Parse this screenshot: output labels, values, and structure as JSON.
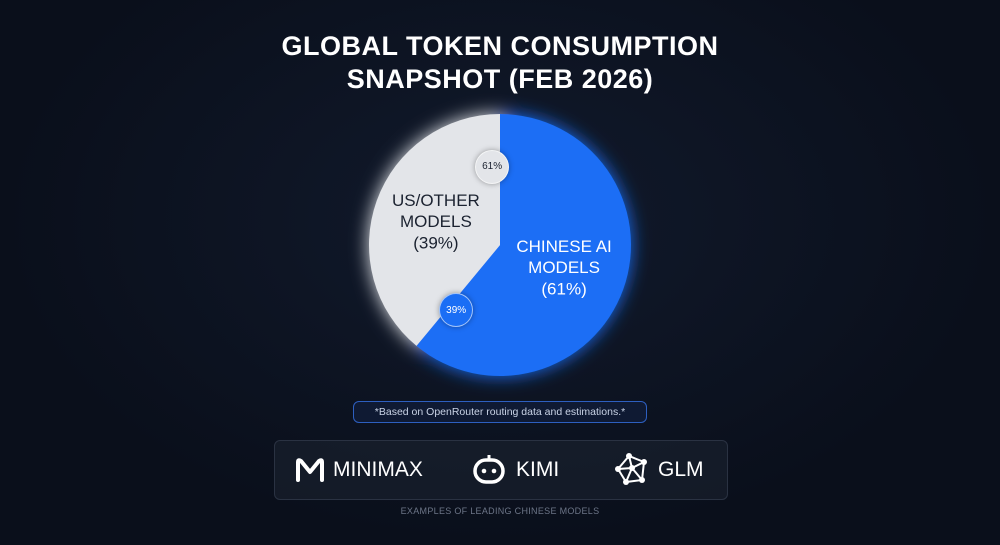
{
  "chart_data": {
    "type": "pie",
    "title": "GLOBAL TOKEN CONSUMPTION SNAPSHOT (FEB 2026)",
    "categories": [
      "CHINESE AI MODELS",
      "US/OTHER MODELS"
    ],
    "values": [
      61,
      39
    ],
    "value_labels": [
      "(61%)",
      "(39%)"
    ],
    "badge_labels": [
      "39%",
      "61%"
    ],
    "colors": [
      "#1a6ef5",
      "#e3e5e9"
    ],
    "label_colors": [
      "#ffffff",
      "#1b2230"
    ],
    "note": "*Based on OpenRouter routing data and estimations.*"
  },
  "brands": [
    "MINIMAX",
    "KIMI",
    "GLM"
  ],
  "caption": "EXAMPLES OF LEADING CHINESE MODELS"
}
